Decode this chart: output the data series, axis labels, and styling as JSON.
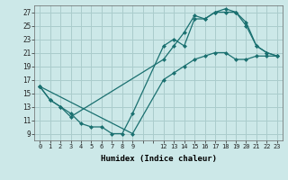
{
  "xlabel": "Humidex (Indice chaleur)",
  "background_color": "#cce8e8",
  "grid_color": "#aacccc",
  "line_color": "#1a7070",
  "xlim": [
    -0.5,
    23.5
  ],
  "ylim": [
    8.0,
    28.0
  ],
  "xticks_all": [
    0,
    1,
    2,
    3,
    4,
    5,
    6,
    7,
    8,
    9,
    10,
    11,
    12,
    13,
    14,
    15,
    16,
    17,
    18,
    19,
    20,
    21,
    22,
    23
  ],
  "xtick_labels": [
    "0",
    "1",
    "2",
    "3",
    "4",
    "5",
    "6",
    "7",
    "8",
    "9",
    "",
    "",
    "12",
    "13",
    "14",
    "15",
    "16",
    "17",
    "18",
    "19",
    "20",
    "21",
    "22",
    "23"
  ],
  "yticks": [
    9,
    11,
    13,
    15,
    17,
    19,
    21,
    23,
    25,
    27
  ],
  "line1_x": [
    0,
    1,
    2,
    3,
    4,
    5,
    6,
    7,
    8,
    9,
    12,
    13,
    14,
    15,
    16,
    17,
    18,
    19,
    20,
    21,
    22,
    23
  ],
  "line1_y": [
    16,
    14,
    13,
    12,
    10.5,
    10,
    10,
    9,
    9,
    12,
    22,
    23,
    22,
    26,
    26,
    27,
    27,
    27,
    25,
    22,
    21,
    20.5
  ],
  "line2_x": [
    0,
    1,
    2,
    3,
    12,
    13,
    14,
    15,
    16,
    17,
    18,
    19,
    20,
    21,
    22,
    23
  ],
  "line2_y": [
    16,
    14,
    13,
    11.5,
    20,
    22,
    24,
    26.5,
    26,
    27,
    27.5,
    27,
    25.5,
    22,
    21,
    20.5
  ],
  "line3_x": [
    0,
    9,
    12,
    13,
    14,
    15,
    16,
    17,
    18,
    19,
    20,
    21,
    22,
    23
  ],
  "line3_y": [
    16,
    9,
    17,
    18,
    19,
    20,
    20.5,
    21,
    21,
    20,
    20,
    20.5,
    20.5,
    20.5
  ]
}
